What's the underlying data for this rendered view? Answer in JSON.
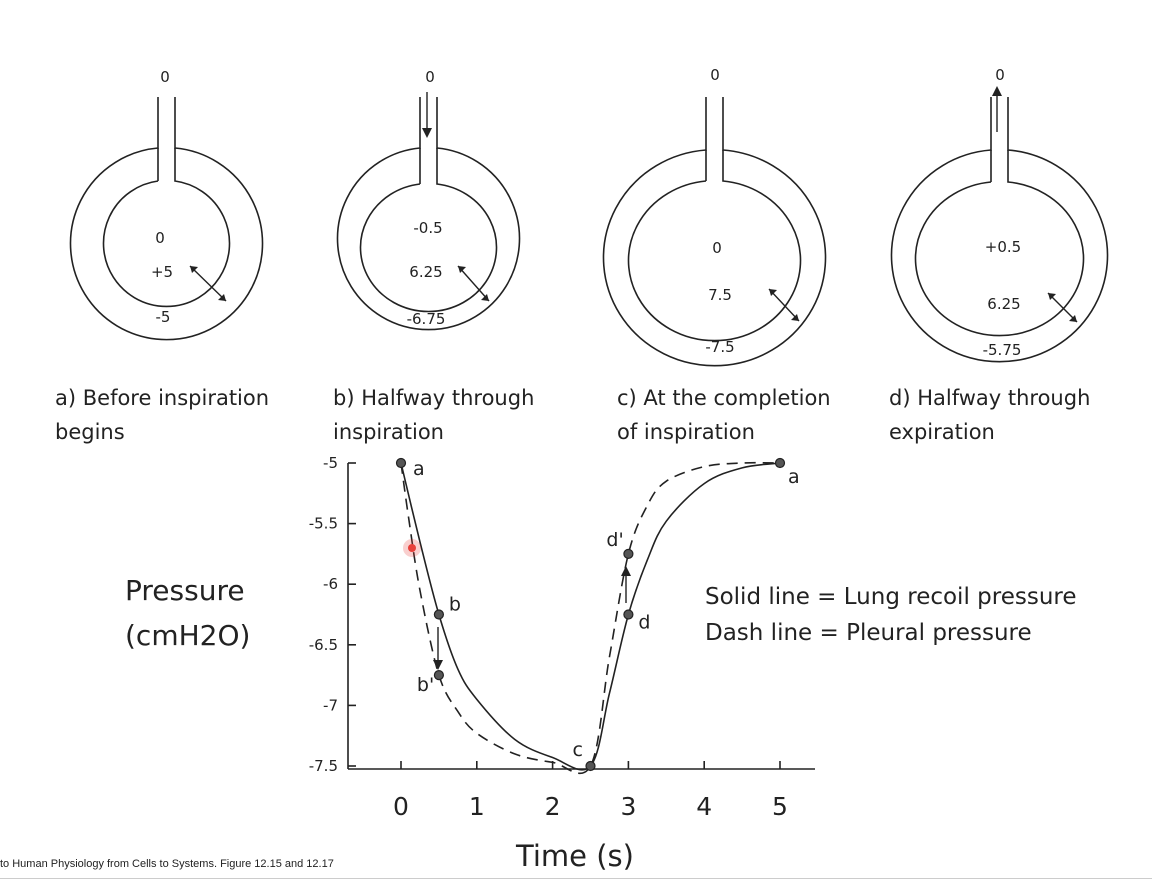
{
  "panels": [
    {
      "id": "a",
      "top": "0",
      "center": "0",
      "mid": "+5",
      "bottom": "-5",
      "airflow": "none",
      "caption_lines": [
        "a) Before inspiration",
        "begins"
      ]
    },
    {
      "id": "b",
      "top": "0",
      "center": "-0.5",
      "mid": "6.25",
      "bottom": "-6.75",
      "airflow": "in",
      "caption_lines": [
        "b) Halfway through",
        "inspiration"
      ]
    },
    {
      "id": "c",
      "top": "0",
      "center": "0",
      "mid": "7.5",
      "bottom": "-7.5",
      "airflow": "none",
      "caption_lines": [
        "c) At the completion",
        "of inspiration"
      ]
    },
    {
      "id": "d",
      "top": "0",
      "center": "+0.5",
      "mid": "6.25",
      "bottom": "-5.75",
      "airflow": "out",
      "caption_lines": [
        "d) Halfway through",
        "expiration"
      ]
    }
  ],
  "chart_data": {
    "type": "line",
    "xlabel": "Time (s)",
    "ylabel_lines": [
      "Pressure",
      "(cmH2O)"
    ],
    "xlim": [
      0,
      5
    ],
    "ylim": [
      -7.5,
      -5
    ],
    "x_ticks": [
      "0",
      "1",
      "2",
      "3",
      "4",
      "5"
    ],
    "y_ticks": [
      "-5",
      "-5.5",
      "-6",
      "-6.5",
      "-7",
      "-7.5"
    ],
    "series": [
      {
        "style": "solid",
        "x": [
          0,
          0.25,
          0.5,
          0.75,
          1,
          1.5,
          2,
          2.5,
          2.75,
          3,
          3.25,
          3.5,
          4,
          4.5,
          5
        ],
        "y": [
          -5,
          -5.65,
          -6.25,
          -6.7,
          -6.95,
          -7.28,
          -7.43,
          -7.5,
          -6.9,
          -6.25,
          -5.8,
          -5.48,
          -5.17,
          -5.04,
          -5
        ]
      },
      {
        "style": "dashed",
        "x": [
          0,
          0.1,
          0.25,
          0.5,
          0.75,
          1,
          1.5,
          2,
          2.5,
          2.75,
          3,
          3.25,
          3.5,
          4,
          4.5,
          5
        ],
        "y": [
          -5,
          -5.45,
          -6.05,
          -6.75,
          -7.05,
          -7.23,
          -7.4,
          -7.47,
          -7.5,
          -6.6,
          -5.75,
          -5.35,
          -5.15,
          -5.03,
          -5.0,
          -5
        ]
      }
    ],
    "points": [
      {
        "label": "a",
        "x": 0,
        "y": -5
      },
      {
        "label": "b",
        "x": 0.5,
        "y": -6.25
      },
      {
        "label": "b'",
        "x": 0.5,
        "y": -6.75
      },
      {
        "label": "c",
        "x": 2.5,
        "y": -7.5
      },
      {
        "label": "d",
        "x": 3,
        "y": -6.25
      },
      {
        "label": "d'",
        "x": 3,
        "y": -5.75
      },
      {
        "label": "a",
        "x": 5,
        "y": -5
      }
    ],
    "annotations": [
      "Solid line = Lung recoil pressure",
      "Dash line = Pleural pressure"
    ]
  },
  "footer": "to Human Physiology from Cells to Systems. Figure 12.15 and 12.17",
  "colors": {
    "ink": "#222222",
    "cursor_red": "#e8403a"
  }
}
